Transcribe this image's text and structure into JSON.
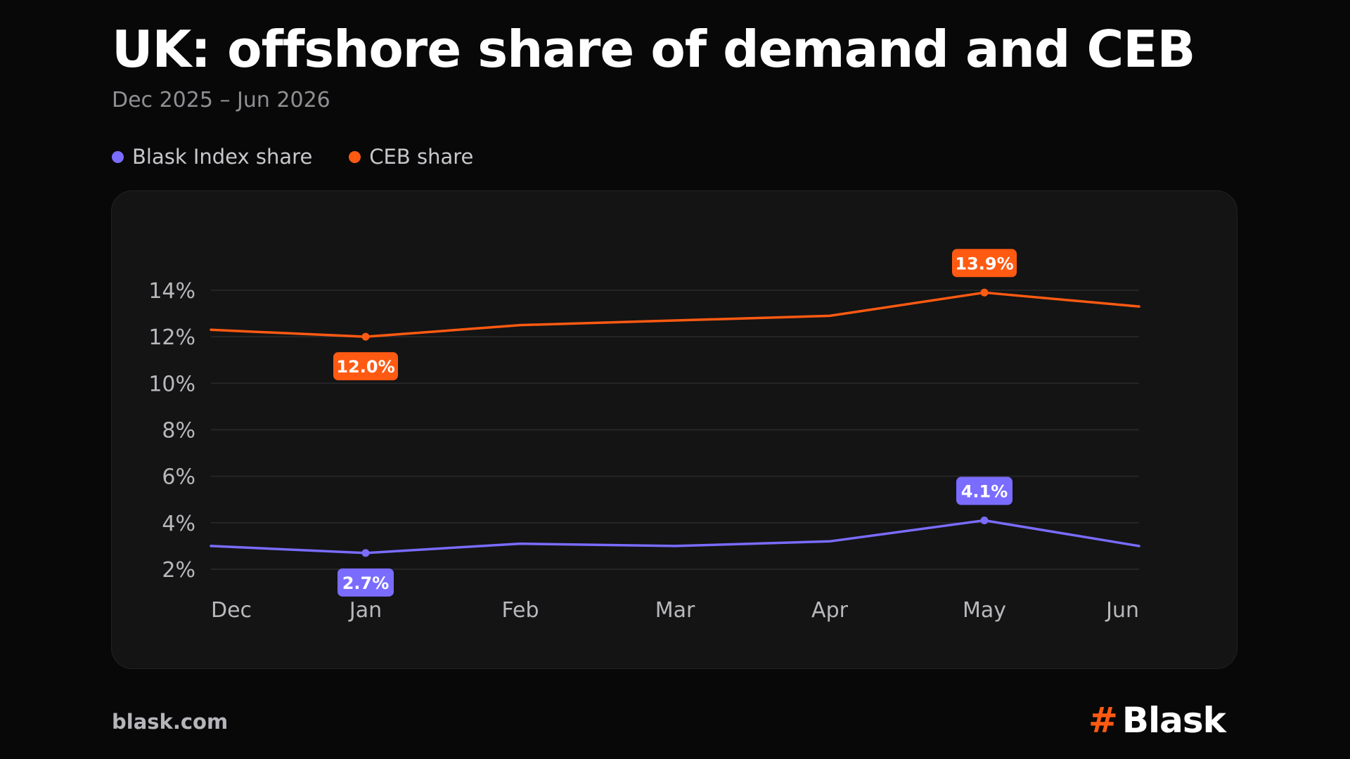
{
  "header": {
    "title": "UK: offshore share of demand and CEB",
    "subtitle": "Dec 2025 – Jun 2026"
  },
  "colors": {
    "background": "#080808",
    "panel": "#141414",
    "blask_index": "#7a6cff",
    "ceb": "#ff5a12",
    "grid": "#2b2b2f",
    "tick_text": "#b8b8bd"
  },
  "legend": {
    "items": [
      {
        "label": "Blask Index share",
        "color": "#7a6cff"
      },
      {
        "label": "CEB share",
        "color": "#ff5a12"
      }
    ]
  },
  "chart_data": {
    "type": "line",
    "title": "UK: offshore share of demand and CEB",
    "subtitle": "Dec 2025 – Jun 2026",
    "categories": [
      "Dec",
      "Jan",
      "Feb",
      "Mar",
      "Apr",
      "May",
      "Jun"
    ],
    "yticks": [
      2,
      4,
      6,
      8,
      10,
      12,
      14
    ],
    "ytick_labels": [
      "2%",
      "4%",
      "6%",
      "8%",
      "10%",
      "12%",
      "14%"
    ],
    "series": [
      {
        "name": "Blask Index share",
        "color": "#7a6cff",
        "values": [
          3.0,
          2.7,
          3.1,
          3.0,
          3.2,
          4.1,
          3.0
        ],
        "annotations": [
          {
            "index": 1,
            "label": "2.7%",
            "position": "below"
          },
          {
            "index": 5,
            "label": "4.1%",
            "position": "above"
          }
        ]
      },
      {
        "name": "CEB share",
        "color": "#ff5a12",
        "values": [
          12.3,
          12.0,
          12.5,
          12.7,
          12.9,
          13.9,
          13.3
        ],
        "annotations": [
          {
            "index": 1,
            "label": "12.0%",
            "position": "below"
          },
          {
            "index": 5,
            "label": "13.9%",
            "position": "above"
          }
        ]
      }
    ],
    "grid": true,
    "legend_position": "top-left"
  },
  "footer": {
    "link": "blask.com",
    "brand_mark": "#",
    "brand_name": "Blask"
  }
}
